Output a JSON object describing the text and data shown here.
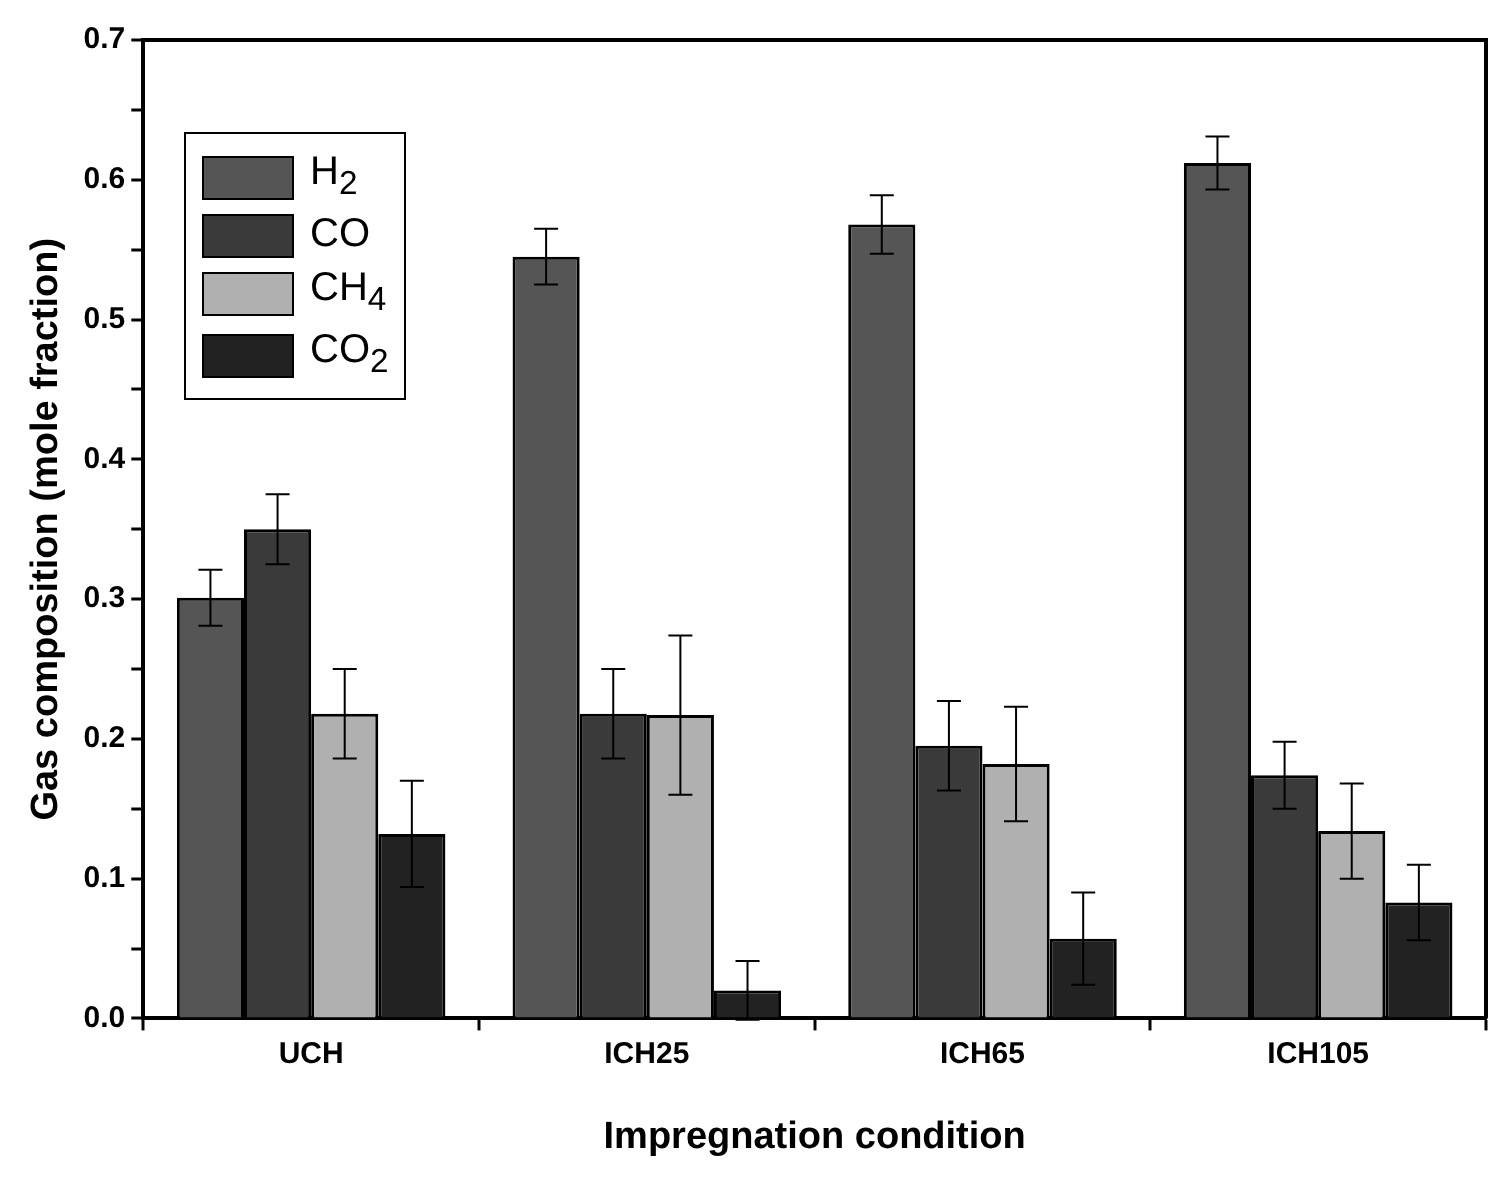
{
  "chart_data": {
    "type": "bar",
    "xlabel": "Impregnation condition",
    "ylabel": "Gas composition (mole fraction)",
    "categories": [
      "UCH",
      "ICH25",
      "ICH65",
      "ICH105"
    ],
    "series": [
      {
        "name": "H$_{2}$",
        "color": "#555555",
        "values": [
          0.301,
          0.545,
          0.568,
          0.612
        ],
        "errors": [
          0.02,
          0.02,
          0.021,
          0.019
        ]
      },
      {
        "name": "CO",
        "color": "#3a3a3a",
        "values": [
          0.35,
          0.218,
          0.195,
          0.174
        ],
        "errors": [
          0.025,
          0.032,
          0.032,
          0.024
        ]
      },
      {
        "name": "CH$_{4}$",
        "color": "#b0b0b0",
        "values": [
          0.218,
          0.217,
          0.182,
          0.134
        ],
        "errors": [
          0.032,
          0.057,
          0.041,
          0.034
        ]
      },
      {
        "name": "CO$_{2}$",
        "color": "#222222",
        "values": [
          0.132,
          0.02,
          0.057,
          0.083
        ],
        "errors": [
          0.038,
          0.021,
          0.033,
          0.027
        ]
      }
    ],
    "ylim": [
      0,
      0.7
    ],
    "yticks": [
      "0.0",
      {
        "value": 0.05,
        "label": null
      },
      {
        "value": 0.1,
        "label": "0.1"
      },
      {
        "value": 0.15,
        "label": null
      },
      {
        "value": 0.2,
        "label": "0.2"
      },
      {
        "value": 0.25,
        "label": null
      },
      {
        "value": 0.3,
        "label": "0.3"
      },
      {
        "value": 0.35,
        "label": null
      },
      {
        "value": 0.4,
        "label": "0.4"
      },
      {
        "value": 0.45,
        "label": null
      },
      {
        "value": 0.5,
        "label": "0.5"
      },
      {
        "value": 0.55,
        "label": null
      },
      {
        "value": 0.6,
        "label": "0.6"
      },
      {
        "value": 0.65,
        "label": null
      },
      {
        "value": 0.7,
        "label": "0.7"
      }
    ],
    "grid": false,
    "legend": "top left"
  }
}
